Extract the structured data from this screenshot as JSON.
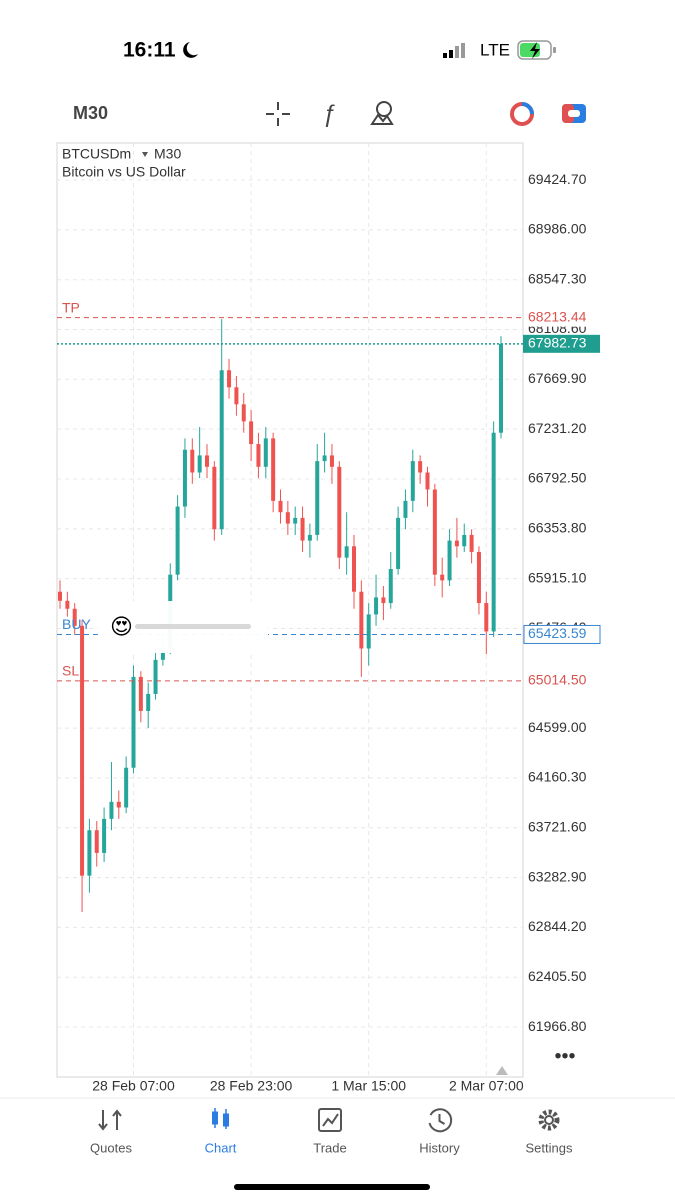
{
  "status_bar": {
    "time": "16:11",
    "network": "LTE"
  },
  "toolbar": {
    "timeframe": "M30"
  },
  "chart_data": {
    "type": "candlestick",
    "symbol": "BTCUSDm",
    "timeframe": "M30",
    "description": "Bitcoin vs US Dollar",
    "open": [
      65800,
      65720,
      65650,
      65500,
      63300,
      63700,
      63500,
      63800,
      63950,
      63900,
      64250,
      65050,
      64750,
      64900,
      65200,
      65300,
      65950,
      66550,
      67050,
      66850,
      67000,
      66900,
      66350,
      67750,
      67600,
      67450,
      67300,
      67100,
      66900,
      67150,
      66600,
      66500,
      66400,
      66450,
      66250,
      66300,
      66950,
      67000,
      66900,
      66100,
      66200,
      65800,
      65300,
      65600,
      65750,
      65700,
      66000,
      66450,
      66600,
      66950,
      66850,
      66700,
      65950,
      65900,
      66250,
      66200,
      66300,
      66150,
      65700,
      65450,
      67200
    ],
    "high": [
      65900,
      65800,
      65700,
      65550,
      63800,
      63780,
      63900,
      64300,
      64050,
      64350,
      65150,
      65100,
      65000,
      65300,
      65450,
      66050,
      66650,
      67150,
      67150,
      67250,
      67100,
      66950,
      68200,
      67850,
      67700,
      67550,
      67400,
      67200,
      67250,
      67200,
      66700,
      66600,
      66550,
      66550,
      66400,
      67100,
      67200,
      67100,
      66950,
      66500,
      66300,
      65900,
      65700,
      65950,
      65850,
      66150,
      66550,
      66700,
      67050,
      67000,
      66900,
      66750,
      66100,
      66350,
      66450,
      66400,
      66350,
      66200,
      65800,
      67300,
      68050
    ],
    "low": [
      65650,
      65580,
      65420,
      62980,
      63150,
      63380,
      63420,
      63700,
      63800,
      63850,
      64200,
      64650,
      64600,
      64850,
      65150,
      65250,
      65900,
      66450,
      66750,
      66800,
      66800,
      66250,
      66300,
      67500,
      67350,
      67200,
      66950,
      66800,
      66800,
      66500,
      66400,
      66300,
      66300,
      66150,
      66100,
      66250,
      66850,
      66750,
      66000,
      65950,
      65650,
      65050,
      65150,
      65500,
      65550,
      65650,
      65950,
      66350,
      66500,
      66750,
      66550,
      65850,
      65750,
      65850,
      66100,
      66150,
      66050,
      65600,
      65250,
      65400,
      67150
    ],
    "close": [
      65720,
      65650,
      65500,
      63300,
      63700,
      63500,
      63800,
      63950,
      63900,
      64250,
      65050,
      64750,
      64900,
      65200,
      65300,
      65950,
      66550,
      67050,
      66850,
      67000,
      66900,
      66350,
      67750,
      67600,
      67450,
      67300,
      67100,
      66900,
      67150,
      66600,
      66500,
      66400,
      66450,
      66250,
      66300,
      66950,
      67000,
      66900,
      66100,
      66200,
      65800,
      65300,
      65600,
      65750,
      65700,
      66000,
      66450,
      66600,
      66950,
      66850,
      66700,
      65950,
      65900,
      66250,
      66200,
      66300,
      66150,
      65700,
      65450,
      67200,
      67982.73
    ],
    "up_color": "#26a69a",
    "down_color": "#ef5350",
    "ylim": [
      61527,
      69751
    ],
    "yticks": [
      {
        "value": 69424.7,
        "label": "69424.70"
      },
      {
        "value": 68986,
        "label": "68986.00"
      },
      {
        "value": 68547.3,
        "label": "68547.30"
      },
      {
        "value": 68108.6,
        "label": "68108.60"
      },
      {
        "value": 67669.9,
        "label": "67669.90"
      },
      {
        "value": 67231.2,
        "label": "67231.20"
      },
      {
        "value": 66792.5,
        "label": "66792.50"
      },
      {
        "value": 66353.8,
        "label": "66353.80"
      },
      {
        "value": 65915.1,
        "label": "65915.10"
      },
      {
        "value": 65476.4,
        "label": "65476.40"
      },
      {
        "value": 64599,
        "label": "64599.00"
      },
      {
        "value": 64160.3,
        "label": "64160.30"
      },
      {
        "value": 63721.6,
        "label": "63721.60"
      },
      {
        "value": 63282.9,
        "label": "63282.90"
      },
      {
        "value": 62844.2,
        "label": "62844.20"
      },
      {
        "value": 62405.5,
        "label": "62405.50"
      },
      {
        "value": 61966.8,
        "label": "61966.80"
      }
    ],
    "xticks": [
      {
        "value": 10,
        "label": "28 Feb 07:00"
      },
      {
        "value": 26,
        "label": "28 Feb 23:00"
      },
      {
        "value": 42,
        "label": "1 Mar 15:00"
      },
      {
        "value": 58,
        "label": "2 Mar 07:00"
      }
    ],
    "grid": true,
    "levels": [
      {
        "name": "TP",
        "value": 68213.44,
        "label": "68213.44",
        "color": "#d9534f"
      },
      {
        "name": "BUY",
        "value": 65423.59,
        "label": "65423.59",
        "color": "#3a86d0"
      },
      {
        "name": "SL",
        "value": 65014.5,
        "label": "65014.50",
        "color": "#d9534f"
      }
    ],
    "current_price": {
      "value": 67982.73,
      "label": "67982.73",
      "color": "#1f9e90"
    }
  },
  "reaction": {
    "emoji": "😍"
  },
  "nav": {
    "items": [
      "Quotes",
      "Chart",
      "Trade",
      "History",
      "Settings"
    ],
    "active": 1,
    "active_color": "#2a7de1"
  }
}
